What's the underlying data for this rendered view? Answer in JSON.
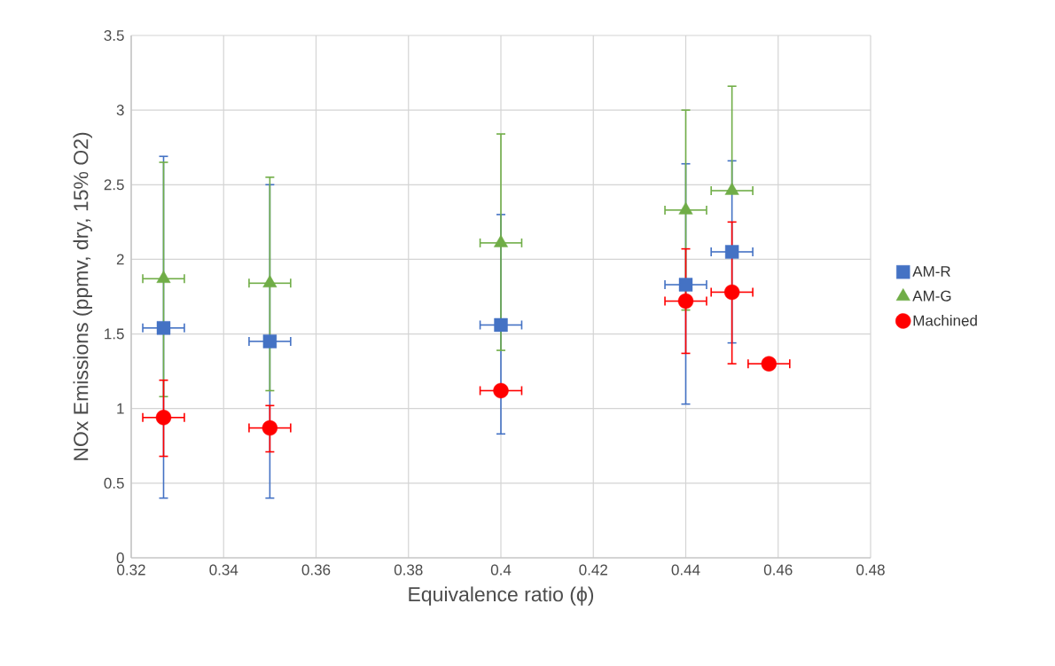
{
  "chart_data": {
    "type": "scatter",
    "xlabel": "Equivalence ratio (ϕ)",
    "ylabel": "NOx Emissions (ppmv, dry, 15% O2)",
    "xlim": [
      0.32,
      0.48
    ],
    "xticks": [
      0.32,
      0.34,
      0.36,
      0.38,
      0.4,
      0.42,
      0.44,
      0.46,
      0.48
    ],
    "ylim": [
      0,
      3.5
    ],
    "yticks": [
      0,
      0.5,
      1,
      1.5,
      2,
      2.5,
      3,
      3.5
    ],
    "grid": true,
    "legend": "right",
    "series": [
      {
        "name": "AM-R",
        "color": "#4472c4",
        "marker": "square",
        "x": [
          0.327,
          0.35,
          0.4,
          0.44,
          0.45
        ],
        "values": [
          1.54,
          1.45,
          1.56,
          1.83,
          2.05
        ],
        "errors": [
          [
            0.4,
            2.69
          ],
          [
            0.4,
            2.5
          ],
          [
            0.83,
            2.3
          ],
          [
            1.03,
            2.64
          ],
          [
            1.44,
            2.66
          ]
        ],
        "xerrors": [
          0.0045,
          0.0045,
          0.0045,
          0.0045,
          0.0045
        ]
      },
      {
        "name": "AM-G",
        "color": "#70ad47",
        "marker": "triangle",
        "x": [
          0.327,
          0.35,
          0.4,
          0.44,
          0.45
        ],
        "values": [
          1.87,
          1.84,
          2.11,
          2.33,
          2.46
        ],
        "errors": [
          [
            1.08,
            2.65
          ],
          [
            1.12,
            2.55
          ],
          [
            1.39,
            2.84
          ],
          [
            1.66,
            3.0
          ],
          [
            2.46,
            3.16
          ]
        ],
        "xerrors": [
          0.0045,
          0.0045,
          0.0045,
          0.0045,
          0.0045
        ]
      },
      {
        "name": "Machined",
        "color": "#ff0000",
        "marker": "circle",
        "x": [
          0.327,
          0.35,
          0.4,
          0.44,
          0.45,
          0.458
        ],
        "values": [
          0.94,
          0.87,
          1.12,
          1.72,
          1.78,
          1.3
        ],
        "errors": [
          [
            0.68,
            1.19
          ],
          [
            0.71,
            1.02
          ],
          null,
          [
            1.37,
            2.07
          ],
          [
            1.3,
            2.25
          ],
          null
        ],
        "xerrors": [
          0.0045,
          0.0045,
          0.0045,
          0.0045,
          0.0045,
          0.0045
        ]
      }
    ]
  }
}
